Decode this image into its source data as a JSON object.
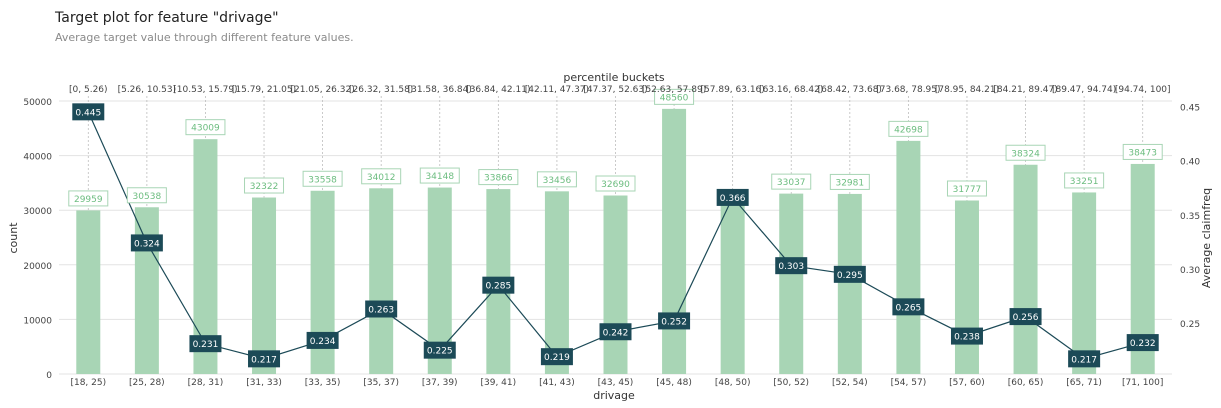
{
  "title": "Target plot for feature \"drivage\"",
  "subtitle": "Average target value through different feature values.",
  "chart_data": {
    "type": "bar",
    "xlabel": "drivage",
    "ylabel": "count",
    "y2label": "Average claimfreq",
    "top_axis_label": "percentile buckets",
    "categories": [
      "[18, 25)",
      "[25, 28)",
      "[28, 31)",
      "[31, 33)",
      "[33, 35)",
      "[35, 37)",
      "[37, 39)",
      "[39, 41)",
      "[41, 43)",
      "[43, 45)",
      "[45, 48)",
      "[48, 50)",
      "[50, 52)",
      "[52, 54)",
      "[54, 57)",
      "[57, 60)",
      "[60, 65)",
      "[65, 71)",
      "[71, 100]"
    ],
    "percentile_buckets": [
      "[0, 5.26)",
      "[5.26, 10.53)",
      "[10.53, 15.79)",
      "[15.79, 21.05)",
      "[21.05, 26.32)",
      "[26.32, 31.58)",
      "[31.58, 36.84)",
      "[36.84, 42.11)",
      "[42.11, 47.37)",
      "[47.37, 52.63)",
      "[52.63, 57.89)",
      "[57.89, 63.16)",
      "[63.16, 68.42)",
      "[68.42, 73.68)",
      "[73.68, 78.95)",
      "[78.95, 84.21)",
      "[84.21, 89.47)",
      "[89.47, 94.74)",
      "[94.74, 100]"
    ],
    "series": [
      {
        "type": "bar",
        "axis": "left",
        "color": "#a8d5b5",
        "label_color": "#6dbd80",
        "values": [
          29959,
          30538,
          43009,
          32322,
          33558,
          34012,
          34148,
          33866,
          33456,
          32690,
          48560,
          33037,
          33037,
          32981,
          42698,
          31777,
          38324,
          33251,
          38473
        ]
      },
      {
        "type": "line",
        "axis": "right",
        "color": "#1c4a57",
        "values": [
          0.445,
          0.324,
          0.231,
          0.217,
          0.234,
          0.263,
          0.225,
          0.285,
          0.219,
          0.242,
          0.252,
          0.366,
          0.303,
          0.295,
          0.265,
          0.238,
          0.256,
          0.217,
          0.232
        ]
      }
    ],
    "bar_labels": [
      "29959",
      "30538",
      "43009",
      "32322",
      "33558",
      "34012",
      "34148",
      "33866",
      "33456",
      "32690",
      "48560",
      "",
      "33037",
      "32981",
      "42698",
      "31777",
      "38324",
      "33251",
      "38473"
    ],
    "ylim": [
      0,
      50000
    ],
    "yticks": [
      "0",
      "10000",
      "20000",
      "30000",
      "40000",
      "50000"
    ],
    "ytick_values": [
      0,
      10000,
      20000,
      30000,
      40000,
      50000
    ],
    "y2lim": [
      0.203,
      0.455
    ],
    "y2ticks": [
      "0.25",
      "0.30",
      "0.35",
      "0.40",
      "0.45"
    ],
    "y2tick_values": [
      0.25,
      0.3,
      0.35,
      0.4,
      0.45
    ],
    "grid": true
  }
}
